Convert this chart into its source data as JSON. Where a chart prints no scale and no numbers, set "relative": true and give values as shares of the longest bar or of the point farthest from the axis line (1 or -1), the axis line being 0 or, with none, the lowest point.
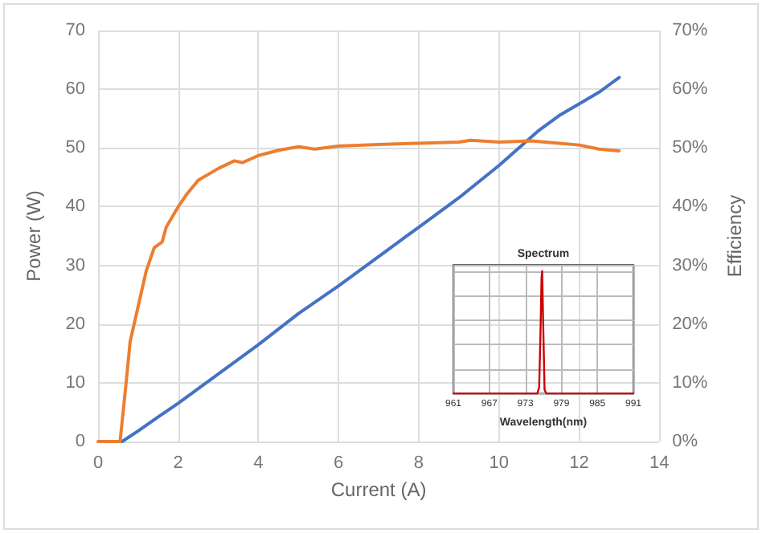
{
  "chart_data": [
    {
      "type": "line",
      "xlabel": "Current (A)",
      "ylabel": "Power (W)",
      "y2label": "Efficiency",
      "xlim": [
        0,
        14
      ],
      "xticks": [
        0,
        2,
        4,
        6,
        8,
        10,
        12,
        14
      ],
      "ylim": [
        0,
        70
      ],
      "yticks": [
        0,
        10,
        20,
        30,
        40,
        50,
        60,
        70
      ],
      "y2lim": [
        0,
        0.7
      ],
      "y2ticks": [
        {
          "value": 0,
          "label": "0%"
        },
        {
          "value": 0.1,
          "label": "10%"
        },
        {
          "value": 0.2,
          "label": "20%"
        },
        {
          "value": 0.3,
          "label": "30%"
        },
        {
          "value": 0.4,
          "label": "40%"
        },
        {
          "value": 0.5,
          "label": "50%"
        },
        {
          "value": 0.6,
          "label": "60%"
        },
        {
          "value": 0.7,
          "label": "70%"
        }
      ],
      "grid": true,
      "marker": "none",
      "line_style": "solid",
      "series": [
        {
          "color": "#4472c4",
          "x": [
            0.6,
            1,
            1.5,
            2,
            3,
            4,
            5,
            6,
            7,
            8,
            9,
            10,
            10.5,
            11,
            11.5,
            12,
            12.5,
            13
          ],
          "values": [
            0,
            1.8,
            4.2,
            6.5,
            11.5,
            16.5,
            21.8,
            26.5,
            31.5,
            36.5,
            41.5,
            47,
            50,
            53,
            55.5,
            57.5,
            59.5,
            62
          ]
        },
        {
          "color": "#ed7d31",
          "axis": "y2",
          "x": [
            0,
            0.55,
            0.7,
            0.8,
            1,
            1.2,
            1.4,
            1.6,
            1.7,
            2,
            2.2,
            2.5,
            3,
            3.4,
            3.6,
            4,
            4.5,
            5,
            5.4,
            6,
            7,
            8,
            9,
            9.3,
            10,
            10.8,
            11.5,
            12,
            12.5,
            13
          ],
          "values": [
            0,
            0,
            0.1,
            0.17,
            0.23,
            0.29,
            0.33,
            0.34,
            0.365,
            0.4,
            0.42,
            0.445,
            0.465,
            0.478,
            0.475,
            0.487,
            0.496,
            0.502,
            0.498,
            0.503,
            0.506,
            0.508,
            0.51,
            0.513,
            0.51,
            0.512,
            0.508,
            0.505,
            0.498,
            0.495
          ]
        }
      ]
    },
    {
      "type": "line",
      "title": "Spectrum",
      "xlabel": "Wavelength(nm)",
      "relative": true,
      "xlim": [
        961,
        991
      ],
      "xticks": [
        961,
        967,
        973,
        979,
        985,
        991
      ],
      "grid": true,
      "marker": "none",
      "series": [
        {
          "color": "#cc0000",
          "x": [
            961,
            975,
            975.3,
            975.5,
            975.7,
            975.8,
            976,
            976.2,
            976.5,
            991
          ],
          "values": [
            0,
            0,
            0.05,
            0.45,
            0.95,
            1,
            0.5,
            0.03,
            0,
            0
          ]
        }
      ]
    }
  ]
}
